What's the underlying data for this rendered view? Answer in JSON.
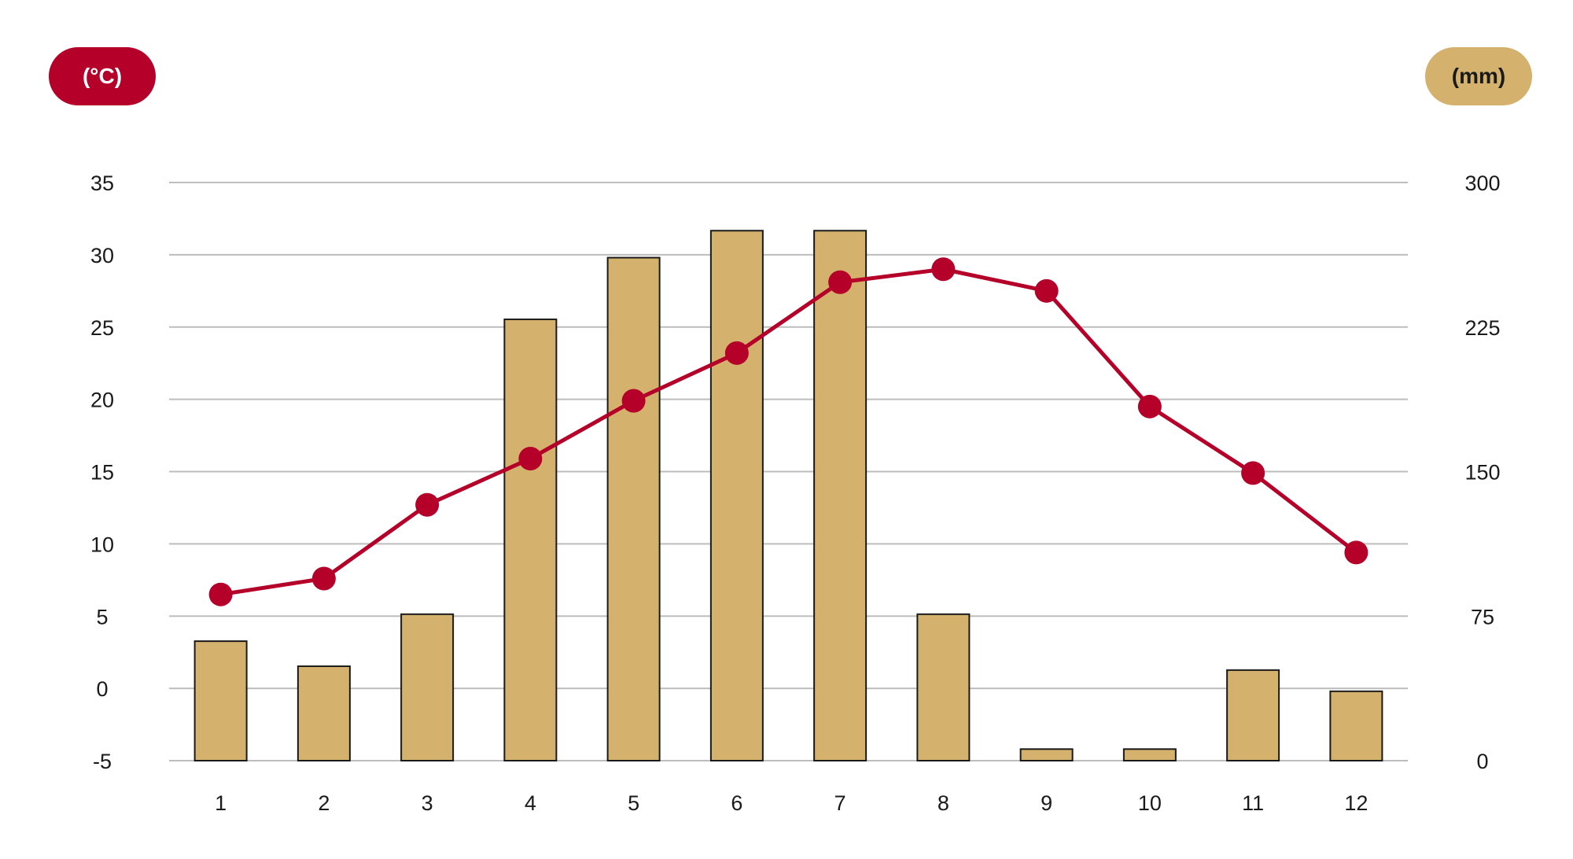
{
  "chart_data": {
    "type": "bar+line",
    "categories": [
      "1",
      "2",
      "3",
      "4",
      "5",
      "6",
      "7",
      "8",
      "9",
      "10",
      "11",
      "12"
    ],
    "left_axis": {
      "unit_label": "(°C)",
      "ticks": [
        "35",
        "30",
        "25",
        "20",
        "15",
        "10",
        "5",
        "0",
        "-5"
      ],
      "range": [
        -5,
        35
      ]
    },
    "right_axis": {
      "unit_label": "(mm)",
      "ticks": [
        "300",
        "225",
        "150",
        "75",
        "0"
      ],
      "range": [
        0,
        300
      ]
    },
    "series": [
      {
        "type": "bar",
        "axis": "right",
        "color": "#d4b26d",
        "values": [
          62,
          49,
          76,
          229,
          261,
          275,
          275,
          76,
          6,
          6,
          47,
          36
        ]
      },
      {
        "type": "line",
        "axis": "left",
        "color": "#b5002a",
        "values": [
          6.5,
          7.6,
          12.7,
          15.9,
          19.9,
          23.2,
          28.1,
          29.0,
          27.5,
          19.5,
          14.9,
          9.4
        ]
      }
    ],
    "grid": true
  }
}
